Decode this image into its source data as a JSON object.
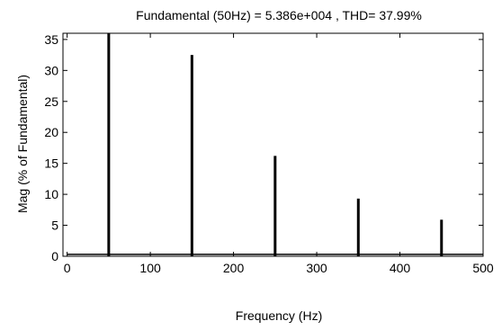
{
  "chart_data": {
    "type": "bar",
    "title": "Fundamental (50Hz) = 5.386e+004 , THD= 37.99%",
    "xlabel": "Frequency (Hz)",
    "ylabel": "Mag (% of Fundamental)",
    "xlim": [
      -5,
      500
    ],
    "ylim": [
      0,
      36
    ],
    "xticks": [
      0,
      100,
      200,
      300,
      400,
      500
    ],
    "yticks": [
      0,
      5,
      10,
      15,
      20,
      25,
      30,
      35
    ],
    "grid": false,
    "legend": "none",
    "bar_color": "#000000",
    "x": [
      50,
      150,
      250,
      350,
      450
    ],
    "values": [
      36,
      32.5,
      16.2,
      9.3,
      5.9
    ],
    "baseline_from": 0,
    "baseline_value": 0.3
  }
}
